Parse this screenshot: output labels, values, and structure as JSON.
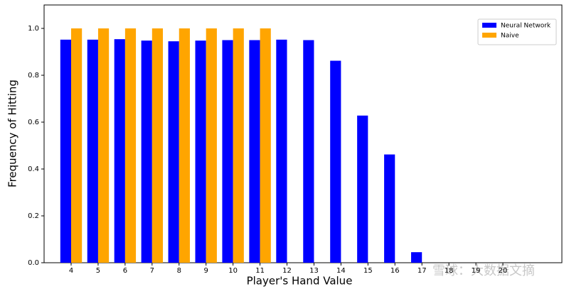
{
  "chart_data": {
    "type": "bar",
    "x_label": "Player's Hand Value",
    "y_label": "Frequency of Hitting",
    "watermark": "雪球：大数据文摘",
    "categories": [
      "4",
      "5",
      "6",
      "7",
      "8",
      "9",
      "10",
      "11",
      "12",
      "13",
      "14",
      "15",
      "16",
      "17",
      "18",
      "19",
      "20"
    ],
    "series": [
      {
        "name": "Neural Network",
        "color": "#0000ff",
        "values": [
          0.952,
          0.952,
          0.954,
          0.948,
          0.945,
          0.948,
          0.95,
          0.95,
          0.952,
          0.95,
          0.862,
          0.628,
          0.462,
          0.045,
          0,
          0,
          0
        ]
      },
      {
        "name": "Naive",
        "color": "#ffa500",
        "values": [
          1.0,
          1.0,
          1.0,
          1.0,
          1.0,
          1.0,
          1.0,
          1.0,
          0,
          0,
          0,
          0,
          0,
          0,
          0,
          0,
          0
        ]
      }
    ],
    "ylim": [
      0,
      1.1
    ],
    "yticks": [
      {
        "value": 0,
        "label": "0.0"
      },
      0.2,
      0.4,
      0.6,
      0.8,
      {
        "value": 1.0,
        "label": "1.0"
      }
    ],
    "legend": "upper right",
    "grid": false
  }
}
